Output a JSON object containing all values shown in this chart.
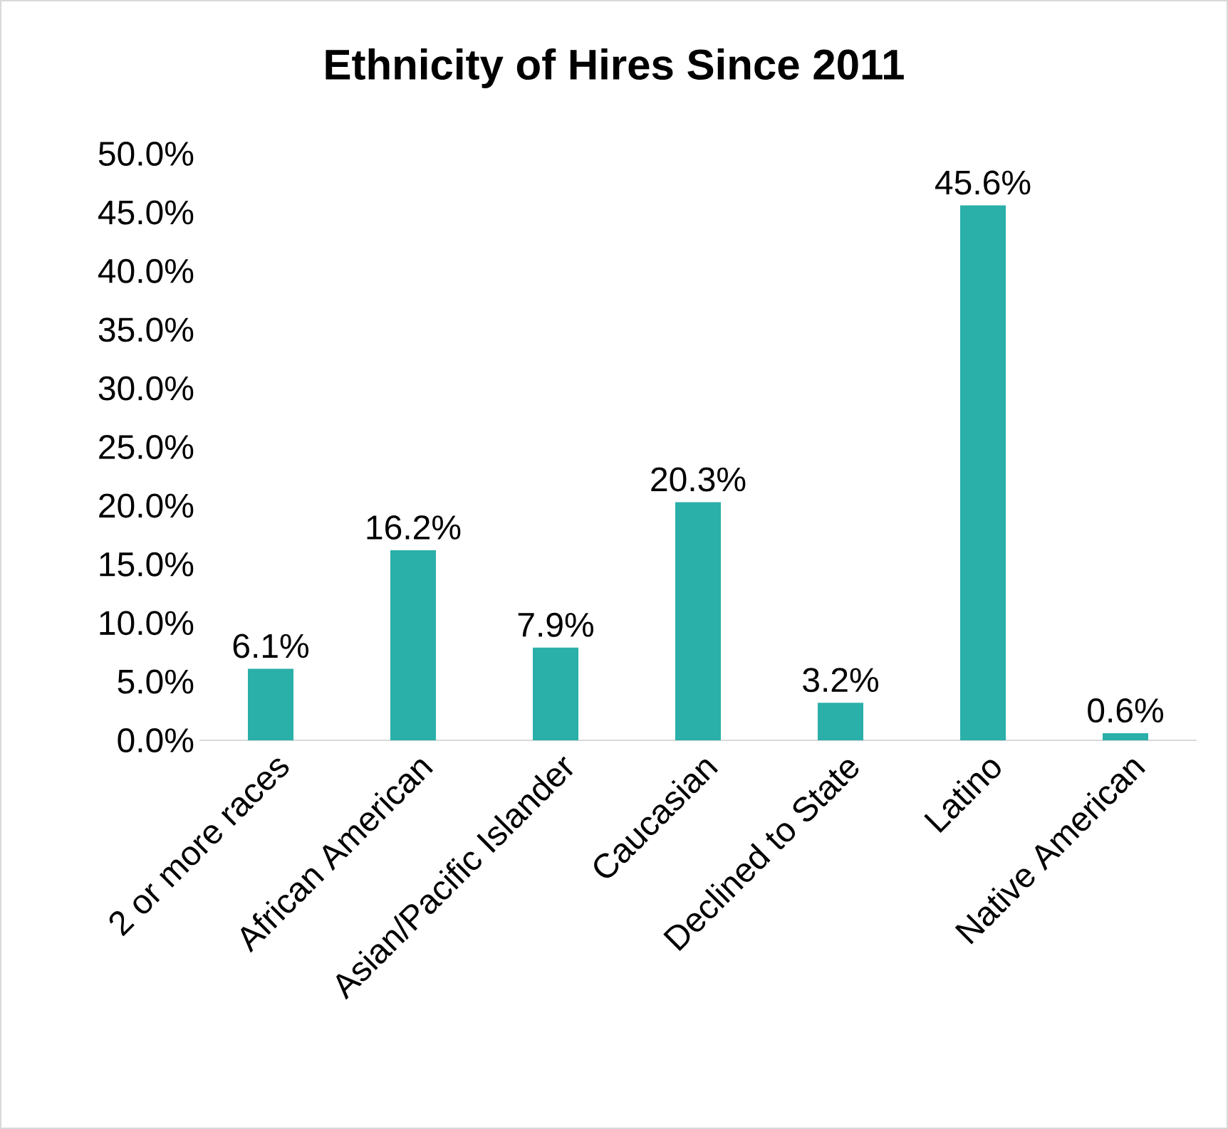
{
  "chart_data": {
    "type": "bar",
    "title": "Ethnicity of Hires Since 2011",
    "categories": [
      "2 or more races",
      "African American",
      "Asian/Pacific Islander",
      "Caucasian",
      "Declined to State",
      "Latino",
      "Native American"
    ],
    "values": [
      6.1,
      16.2,
      7.9,
      20.3,
      3.2,
      45.6,
      0.6
    ],
    "value_labels": [
      "6.1%",
      "16.2%",
      "7.9%",
      "20.3%",
      "3.2%",
      "45.6%",
      "0.6%"
    ],
    "color": "#2aafa9",
    "ylim": [
      0,
      50
    ],
    "grid": false,
    "yticks": [
      {
        "value": 0,
        "label": "0.0%"
      },
      {
        "value": 5,
        "label": "5.0%"
      },
      {
        "value": 10,
        "label": "10.0%"
      },
      {
        "value": 15,
        "label": "15.0%"
      },
      {
        "value": 20,
        "label": "20.0%"
      },
      {
        "value": 25,
        "label": "25.0%"
      },
      {
        "value": 30,
        "label": "30.0%"
      },
      {
        "value": 35,
        "label": "35.0%"
      },
      {
        "value": 40,
        "label": "40.0%"
      },
      {
        "value": 45,
        "label": "45.0%"
      },
      {
        "value": 50,
        "label": "50.0%"
      }
    ],
    "data_labels": false
  }
}
